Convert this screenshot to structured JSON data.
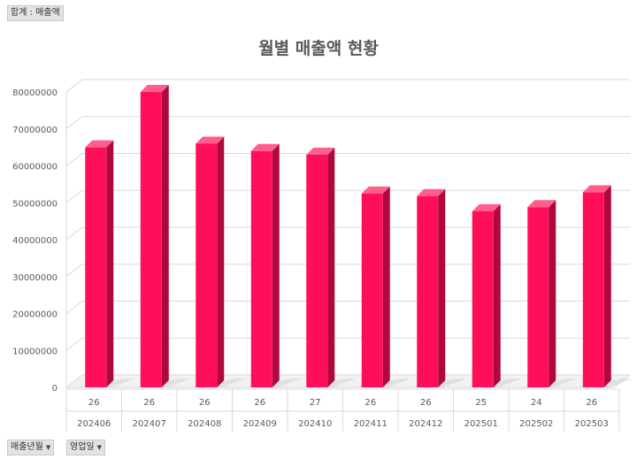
{
  "filters": {
    "sum_label": "합계 : 매출액",
    "row_fields": [
      {
        "label": "매출년월"
      },
      {
        "label": "영업일"
      }
    ]
  },
  "chart_data": {
    "type": "bar",
    "title": "월별 매출액 현황",
    "categories": [
      "202406",
      "202407",
      "202408",
      "202409",
      "202410",
      "202411",
      "202412",
      "202501",
      "202502",
      "202503"
    ],
    "sub_categories": [
      "26",
      "26",
      "26",
      "26",
      "27",
      "26",
      "26",
      "25",
      "24",
      "26"
    ],
    "values": [
      65000000,
      80000000,
      66000000,
      64000000,
      63000000,
      52500000,
      51800000,
      47700000,
      48800000,
      52800000
    ],
    "ylim": [
      0,
      80000000
    ],
    "yticks": [
      "0",
      "10000000",
      "20000000",
      "30000000",
      "40000000",
      "50000000",
      "60000000",
      "70000000",
      "80000000"
    ],
    "grid": true,
    "bar_color": "#ff0f5a",
    "bar_side_color": "#b0073c",
    "bar_top_color": "#ff5e8c"
  }
}
